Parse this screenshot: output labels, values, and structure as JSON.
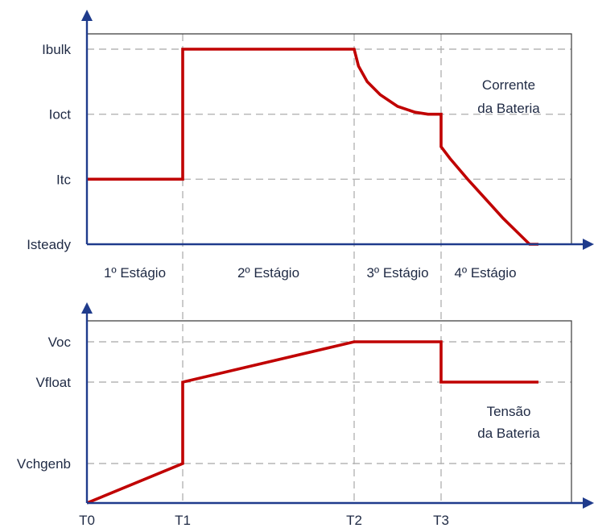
{
  "chart_data": [
    {
      "type": "line",
      "title": "",
      "xlabel": "",
      "ylabel": "",
      "grid": true,
      "annotation": [
        "Corrente",
        "da Bateria"
      ],
      "y_ticks": [
        "Isteady",
        "Itc",
        "Ioct",
        "Ibulk"
      ],
      "y_tick_values": [
        0,
        1,
        2,
        3
      ],
      "x_ticks": [
        "T0",
        "T1",
        "T2",
        "T3"
      ],
      "x_tick_values": [
        0,
        1,
        2,
        3
      ],
      "stages": [
        "1º Estágio",
        "2º Estágio",
        "3º Estágio",
        "4º Estágio"
      ],
      "stage_bounds": [
        [
          0,
          1
        ],
        [
          1,
          2
        ],
        [
          2,
          3
        ],
        [
          3,
          4
        ]
      ],
      "xlim": [
        0,
        4.15
      ],
      "ylim": [
        0,
        3.4
      ],
      "series": [
        {
          "x": [
            0,
            1,
            1,
            2,
            2.05,
            2.15,
            2.3,
            2.5,
            2.7,
            2.85,
            3.0,
            3.0,
            3.1,
            3.3,
            3.5,
            3.7,
            3.85,
            4.0,
            4.1
          ],
          "y": [
            1,
            1,
            3,
            3,
            2.74,
            2.5,
            2.3,
            2.12,
            2.03,
            2.0,
            2.0,
            1.5,
            1.32,
            1.0,
            0.7,
            0.4,
            0.2,
            0.0,
            0.0
          ]
        }
      ]
    },
    {
      "type": "line",
      "title": "",
      "xlabel": "",
      "ylabel": "",
      "grid": true,
      "annotation": [
        "Tensão",
        "da Bateria"
      ],
      "y_ticks": [
        "Vchgenb",
        "Vfloat",
        "Voc"
      ],
      "y_tick_values": [
        1,
        3,
        3.5
      ],
      "x_ticks": [
        "T0",
        "T1",
        "T2",
        "T3"
      ],
      "x_tick_values": [
        0,
        1,
        2,
        3
      ],
      "xlim": [
        0,
        4.15
      ],
      "ylim": [
        0,
        4
      ],
      "series": [
        {
          "x": [
            0,
            1,
            1,
            2,
            3,
            3,
            4.1
          ],
          "y": [
            0,
            1,
            3,
            3.5,
            3.5,
            3,
            3
          ]
        }
      ]
    }
  ]
}
